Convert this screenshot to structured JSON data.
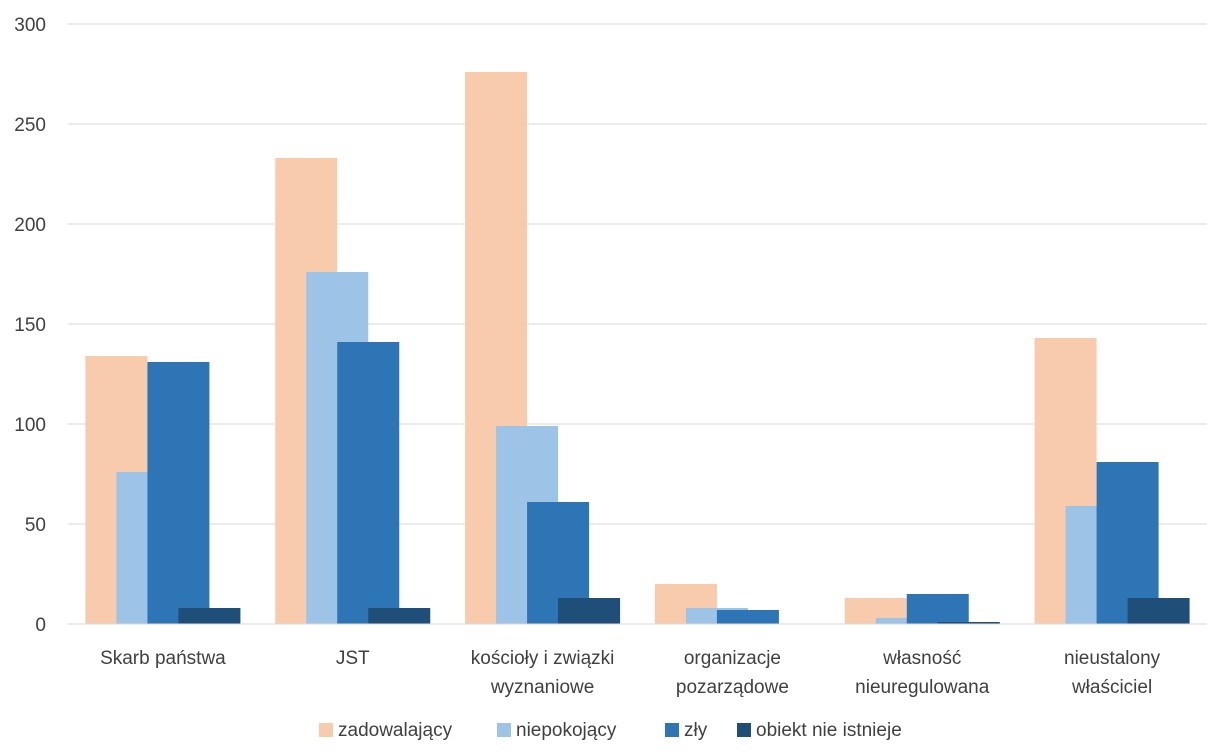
{
  "chart_data": {
    "type": "bar",
    "title": "",
    "xlabel": "",
    "ylabel": "",
    "ylim": [
      0,
      300
    ],
    "yticks": [
      0,
      50,
      100,
      150,
      200,
      250,
      300
    ],
    "grid": true,
    "legend_position": "bottom",
    "categories": [
      [
        "Skarb państwa"
      ],
      [
        "JST"
      ],
      [
        "kościoły i związki",
        "wyznaniowe"
      ],
      [
        "organizacje",
        "pozarządowe"
      ],
      [
        "własność",
        "nieuregulowana"
      ],
      [
        "nieustalony",
        "właściciel"
      ]
    ],
    "series": [
      {
        "name": "zadowalający",
        "color": "#F8CBAD",
        "values": [
          134,
          233,
          276,
          20,
          13,
          143
        ]
      },
      {
        "name": "niepokojący",
        "color": "#9DC3E6",
        "values": [
          76,
          176,
          99,
          8,
          3,
          59
        ]
      },
      {
        "name": "zły",
        "color": "#2E75B6",
        "values": [
          131,
          141,
          61,
          7,
          15,
          81
        ]
      },
      {
        "name": "obiekt nie istnieje",
        "color": "#1F4E79",
        "values": [
          8,
          8,
          13,
          0,
          1,
          13
        ]
      }
    ]
  }
}
